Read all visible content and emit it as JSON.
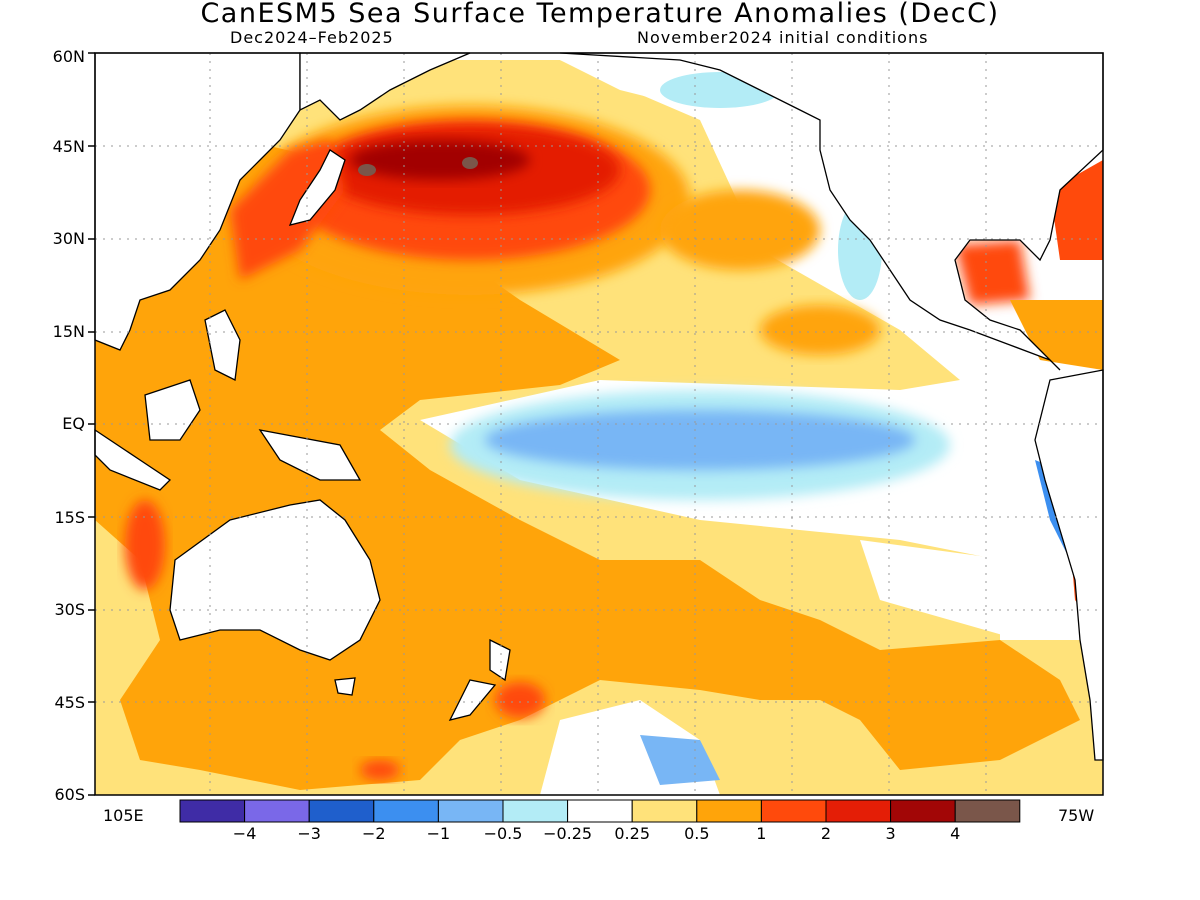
{
  "title": "CanESM5 Sea Surface Temperature Anomalies (DecC)",
  "subtitle_left": "Dec2024–Feb2025",
  "subtitle_right": "November2024 initial conditions",
  "lat_labels": [
    "60N",
    "45N",
    "30N",
    "15N",
    "EQ",
    "15S",
    "30S",
    "45S",
    "60S"
  ],
  "lon_labels": {
    "left": "105E",
    "right": "75W"
  },
  "colorbar": {
    "colors": [
      "#3f2ca6",
      "#7a68e8",
      "#1f5fcc",
      "#3c8ff0",
      "#78b6f5",
      "#b3ecf6",
      "#ffffff",
      "#ffe27a",
      "#ffa40a",
      "#ff4a0c",
      "#e41e06",
      "#a20606",
      "#7a564a"
    ],
    "labels": [
      "−4",
      "−3",
      "−2",
      "−1",
      "−0.5",
      "−0.25",
      "0.25",
      "0.5",
      "1",
      "2",
      "3",
      "4"
    ]
  },
  "map_data": {
    "region": "Pacific basin",
    "lat_range": [
      "60S",
      "60N"
    ],
    "lon_range": [
      "105E",
      "75W"
    ],
    "field": "Sea surface temperature anomaly (DecC)"
  }
}
